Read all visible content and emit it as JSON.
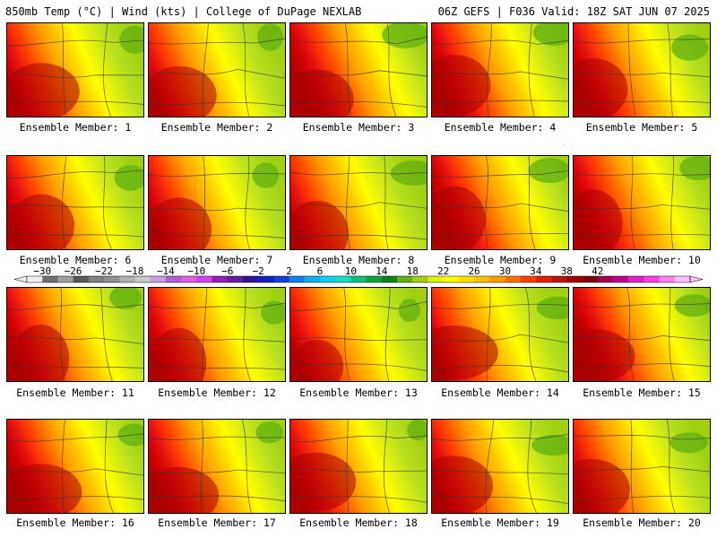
{
  "header": {
    "left_title": "850mb Temp (°C) | Wind (kts) | College of DuPage NEXLAB",
    "right_title": "06Z GEFS | F036 Valid: 18Z SAT JUN 07 2025"
  },
  "panels": [
    {
      "label": "Ensemble Member: 1"
    },
    {
      "label": "Ensemble Member: 2"
    },
    {
      "label": "Ensemble Member: 3"
    },
    {
      "label": "Ensemble Member: 4"
    },
    {
      "label": "Ensemble Member: 5"
    },
    {
      "label": "Ensemble Member: 6"
    },
    {
      "label": "Ensemble Member: 7"
    },
    {
      "label": "Ensemble Member: 8"
    },
    {
      "label": "Ensemble Member: 9"
    },
    {
      "label": "Ensemble Member: 10"
    },
    {
      "label": "Ensemble Member: 11"
    },
    {
      "label": "Ensemble Member: 12"
    },
    {
      "label": "Ensemble Member: 13"
    },
    {
      "label": "Ensemble Member: 14"
    },
    {
      "label": "Ensemble Member: 15"
    },
    {
      "label": "Ensemble Member: 16"
    },
    {
      "label": "Ensemble Member: 17"
    },
    {
      "label": "Ensemble Member: 18"
    },
    {
      "label": "Ensemble Member: 19"
    },
    {
      "label": "Ensemble Member: 20"
    }
  ],
  "colorbar": {
    "tick_labels": [
      "-30",
      "-26",
      "-22",
      "-18",
      "-14",
      "-10",
      "-6",
      "-2",
      "2",
      "6",
      "10",
      "14",
      "18",
      "22",
      "26",
      "30",
      "34",
      "38",
      "42"
    ],
    "colors": [
      "#f0f0f0",
      "#707070",
      "#a0a0a0",
      "#5a5a5a",
      "#808080",
      "#909090",
      "#b0b0b0",
      "#c8c8c8",
      "#c8a0e0",
      "#b060d0",
      "#e060e0",
      "#d040ff",
      "#9020c0",
      "#6020a0",
      "#3010a0",
      "#1020c0",
      "#1040e0",
      "#1080f0",
      "#10b0f0",
      "#10d0f0",
      "#10e0c0",
      "#10c080",
      "#10a040",
      "#108020",
      "#60b010",
      "#a0d010",
      "#e0f010",
      "#ffff00",
      "#ffe000",
      "#ffc000",
      "#ffa000",
      "#ff7000",
      "#ff4000",
      "#e02000",
      "#c01010",
      "#a00000",
      "#800010",
      "#a00050",
      "#c00090",
      "#e020c0",
      "#ff40e0",
      "#ff80f0",
      "#ffc0ff"
    ],
    "level_min": -30,
    "level_step": 2
  }
}
